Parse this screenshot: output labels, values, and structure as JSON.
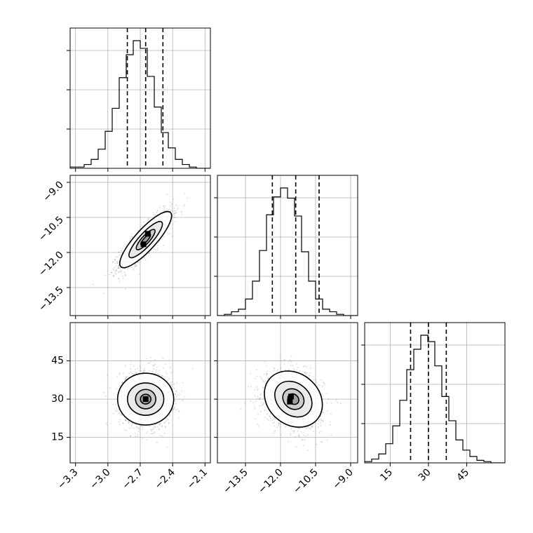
{
  "chart_data": {
    "type": "corner",
    "parameters": [
      {
        "range": [
          -3.35,
          -2.05
        ],
        "ticks": [
          -3.3,
          -3.0,
          -2.7,
          -2.4,
          -2.1
        ],
        "tick_labels": [
          "−3.3",
          "−3.0",
          "−2.7",
          "−2.4",
          "−2.1"
        ],
        "quantiles": [
          -2.82,
          -2.65,
          -2.49
        ],
        "hist_edges_start": -3.35,
        "hist_bin_width": 0.065,
        "hist_counts": [
          1,
          1,
          3,
          7,
          15,
          29,
          47,
          71,
          89,
          100,
          94,
          72,
          48,
          28,
          16,
          7,
          3,
          1,
          0,
          0
        ]
      },
      {
        "range": [
          -14.7,
          -8.7
        ],
        "ticks": [
          -13.5,
          -12.0,
          -10.5,
          -9.0
        ],
        "tick_labels": [
          "−13.5",
          "−12.0",
          "−10.5",
          "−9.0"
        ],
        "quantiles": [
          -12.35,
          -11.35,
          -10.35
        ],
        "hist_edges_start": -14.7,
        "hist_bin_width": 0.3,
        "hist_counts": [
          0,
          1,
          3,
          5,
          13,
          27,
          51,
          79,
          93,
          100,
          92,
          78,
          50,
          27,
          13,
          5,
          3,
          1,
          0,
          0
        ]
      },
      {
        "range": [
          5,
          60
        ],
        "ticks": [
          15,
          30,
          45
        ],
        "tick_labels": [
          "15",
          "30",
          "45"
        ],
        "quantiles": [
          23,
          30,
          37
        ],
        "hist_edges_start": 5,
        "hist_bin_width": 2.75,
        "hist_counts": [
          1,
          3,
          7,
          15,
          29,
          49,
          73,
          89,
          100,
          95,
          76,
          52,
          33,
          18,
          10,
          5,
          2,
          1,
          0,
          0
        ]
      }
    ],
    "pairs": [
      {
        "x_param": 0,
        "y_param": 1,
        "mean": [
          -2.65,
          -11.45
        ],
        "std": [
          0.12,
          0.6
        ],
        "corr": 0.85,
        "contour_levels_sigma": [
          0.3,
          0.6,
          1.0,
          1.6
        ],
        "core_pixels": [
          [
            -2.63,
            -11.2
          ],
          [
            -2.67,
            -11.65
          ]
        ]
      },
      {
        "x_param": 0,
        "y_param": 2,
        "mean": [
          -2.65,
          30
        ],
        "std": [
          0.12,
          5.5
        ],
        "corr": 0.0,
        "contour_levels_sigma": [
          0.3,
          0.6,
          1.0,
          1.6
        ],
        "core_pixels": [
          [
            -2.65,
            30
          ]
        ]
      },
      {
        "x_param": 1,
        "y_param": 2,
        "mean": [
          -11.45,
          30
        ],
        "std": [
          0.62,
          5.5
        ],
        "corr": -0.2,
        "contour_levels_sigma": [
          0.3,
          0.6,
          1.0,
          1.6
        ],
        "core_pixels": [
          [
            -11.55,
            31
          ],
          [
            -11.6,
            29
          ]
        ]
      }
    ],
    "grid": true,
    "histogram_style": "step",
    "scatter_color": "#8c8c8c",
    "contour_color": "#000000"
  }
}
